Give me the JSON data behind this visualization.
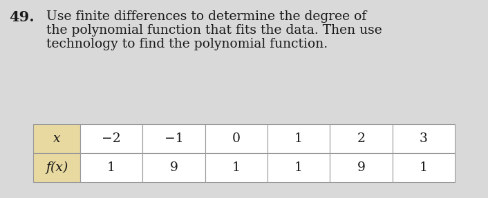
{
  "problem_number": "49.",
  "text_lines": [
    "Use finite differences to determine the degree of",
    "the polynomial function that fits the data. Then use",
    "technology to find the polynomial function."
  ],
  "table": {
    "row1_label": "x",
    "row2_label": "f(x)",
    "x_values": [
      "−2",
      "−1",
      "0",
      "1",
      "2",
      "3"
    ],
    "fx_values": [
      "1",
      "9",
      "1",
      "1",
      "9",
      "1"
    ]
  },
  "header_cell_color": "#e8d9a0",
  "table_bg_color": "#ffffff",
  "border_color": "#999999",
  "text_color": "#1a1a1a",
  "background_color": "#d9d9d9",
  "font_size_text": 13.5,
  "font_size_number": 15,
  "font_size_table": 13.5
}
